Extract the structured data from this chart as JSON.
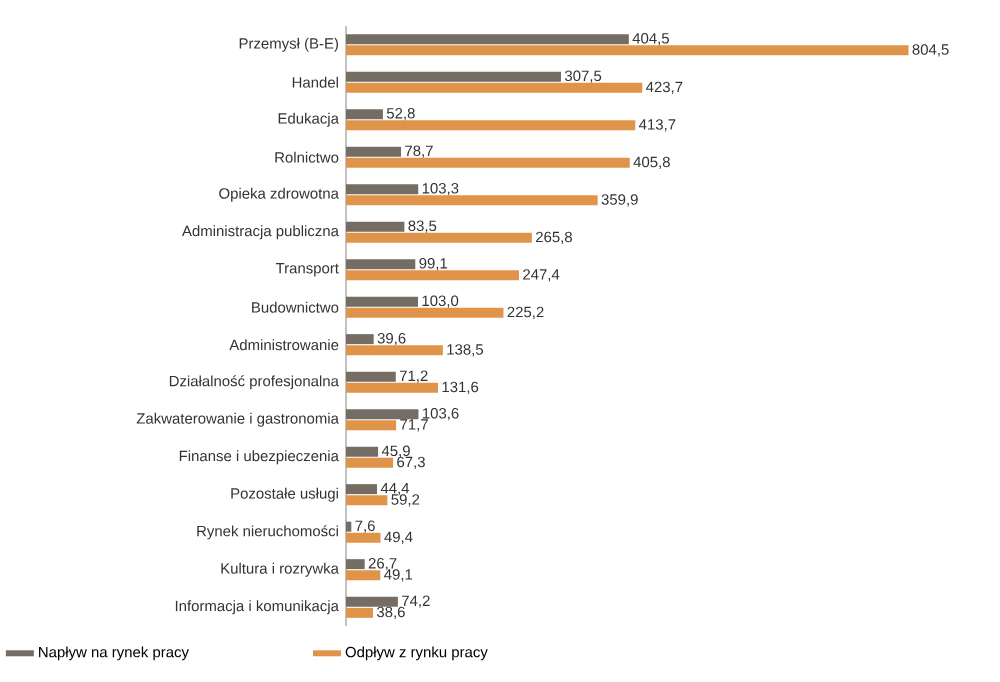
{
  "chart_data": {
    "type": "bar",
    "orientation": "horizontal",
    "legend": "bottom",
    "categories": [
      "Przemysł (B-E)",
      "Handel",
      "Edukacja",
      "Rolnictwo",
      "Opieka zdrowotna",
      "Administracja publiczna",
      "Transport",
      "Budownictwo",
      "Administrowanie",
      "Działalność profesjonalna",
      "Zakwaterowanie i gastronomia",
      "Finanse i ubezpieczenia",
      "Pozostałe usługi",
      "Rynek nieruchomości",
      "Kultura i rozrywka",
      "Informacja i komunikacja"
    ],
    "series": [
      {
        "name": "Napływ na rynek pracy",
        "color": "#756d64",
        "values": [
          404.5,
          307.5,
          52.8,
          78.7,
          103.3,
          83.5,
          99.1,
          103.0,
          39.6,
          71.2,
          103.6,
          45.9,
          44.4,
          7.6,
          26.7,
          74.2
        ],
        "value_labels": [
          "404,5",
          "307,5",
          "52,8",
          "78,7",
          "103,3",
          "83,5",
          "99,1",
          "103,0",
          "39,6",
          "71,2",
          "103,6",
          "45,9",
          "44,4",
          "7,6",
          "26,7",
          "74,2"
        ]
      },
      {
        "name": "Odpływ z rynku pracy",
        "color": "#e0944a",
        "values": [
          804.5,
          423.7,
          413.7,
          405.8,
          359.9,
          265.8,
          247.4,
          225.2,
          138.5,
          131.6,
          71.7,
          67.3,
          59.2,
          49.4,
          49.1,
          38.6
        ],
        "value_labels": [
          "804,5",
          "423,7",
          "413,7",
          "405,8",
          "359,9",
          "265,8",
          "247,4",
          "225,2",
          "138,5",
          "131,6",
          "71,7",
          "67,3",
          "59,2",
          "49,4",
          "49,1",
          "38,6"
        ]
      }
    ]
  }
}
